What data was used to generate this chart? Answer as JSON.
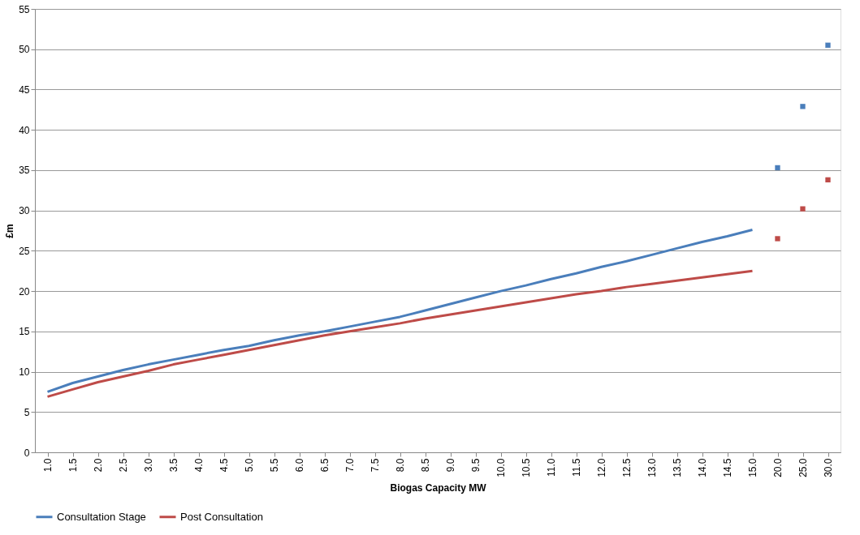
{
  "chart_data": {
    "type": "line",
    "xlabel": "Biogas Capacity MW",
    "ylabel": "£m",
    "categories": [
      "1.0",
      "1.5",
      "2.0",
      "2.5",
      "3.0",
      "3.5",
      "4.0",
      "4.5",
      "5.0",
      "5.5",
      "6.0",
      "6.5",
      "7.0",
      "7.5",
      "8.0",
      "8.5",
      "9.0",
      "9.5",
      "10.0",
      "10.5",
      "11.0",
      "11.5",
      "12.0",
      "12.5",
      "13.0",
      "13.5",
      "14.0",
      "14.5",
      "15.0",
      "20.0",
      "25.0",
      "30.0"
    ],
    "series": [
      {
        "name": "Consultation Stage",
        "color": "#4a7ebb",
        "values": [
          7.5,
          8.6,
          9.4,
          10.2,
          10.9,
          11.5,
          12.1,
          12.7,
          13.2,
          13.9,
          14.5,
          15.0,
          15.6,
          16.2,
          16.8,
          17.6,
          18.4,
          19.2,
          20.0,
          20.7,
          21.5,
          22.2,
          23.0,
          23.7,
          24.5,
          25.3,
          26.1,
          26.8,
          27.6,
          null,
          null,
          null
        ]
      },
      {
        "name": "Post Consultation",
        "color": "#be4b48",
        "values": [
          6.9,
          7.8,
          8.7,
          9.4,
          10.1,
          10.9,
          11.5,
          12.1,
          12.7,
          13.3,
          13.9,
          14.5,
          15.0,
          15.5,
          16.0,
          16.6,
          17.1,
          17.6,
          18.1,
          18.6,
          19.1,
          19.6,
          20.0,
          20.5,
          20.9,
          21.3,
          21.7,
          22.1,
          22.5,
          null,
          null,
          null
        ]
      },
      {
        "color": "#4a7ebb",
        "type": "scatter",
        "marker": "square",
        "values": [
          null,
          null,
          null,
          null,
          null,
          null,
          null,
          null,
          null,
          null,
          null,
          null,
          null,
          null,
          null,
          null,
          null,
          null,
          null,
          null,
          null,
          null,
          null,
          null,
          null,
          null,
          null,
          null,
          null,
          35.3,
          42.9,
          50.5
        ]
      },
      {
        "color": "#be4b48",
        "type": "scatter",
        "marker": "square",
        "values": [
          null,
          null,
          null,
          null,
          null,
          null,
          null,
          null,
          null,
          null,
          null,
          null,
          null,
          null,
          null,
          null,
          null,
          null,
          null,
          null,
          null,
          null,
          null,
          null,
          null,
          null,
          null,
          null,
          null,
          26.5,
          30.2,
          33.8
        ]
      }
    ],
    "ylim": [
      0,
      55
    ],
    "yticks": [
      0,
      5,
      10,
      15,
      20,
      25,
      30,
      35,
      40,
      45,
      50,
      55
    ],
    "grid": "y",
    "legend": "bottom"
  }
}
